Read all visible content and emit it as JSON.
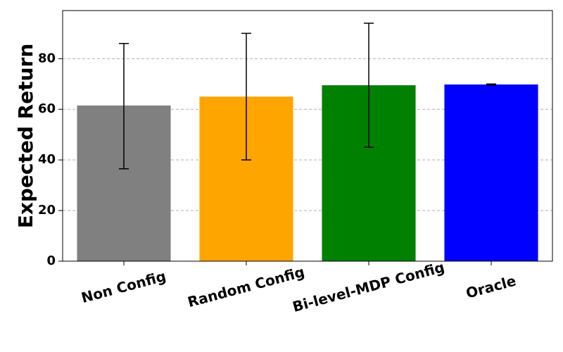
{
  "chart_data": {
    "type": "bar",
    "categories": [
      "Non Config",
      "Random Config",
      "Bi-level-MDP Config",
      "Oracle"
    ],
    "values": [
      61.5,
      65.0,
      69.5,
      69.8
    ],
    "error_low": [
      36.5,
      40.0,
      45.0,
      69.6
    ],
    "error_high": [
      86.0,
      90.0,
      94.0,
      70.0
    ],
    "colors": [
      "#808080",
      "#FFA500",
      "#008000",
      "#0000FF"
    ],
    "title": "",
    "xlabel": "",
    "ylabel": "Expected Return",
    "ylim": [
      0,
      99
    ],
    "yticks": [
      0,
      20,
      40,
      60,
      80
    ],
    "grid": "y-dashed",
    "legend": "none"
  }
}
